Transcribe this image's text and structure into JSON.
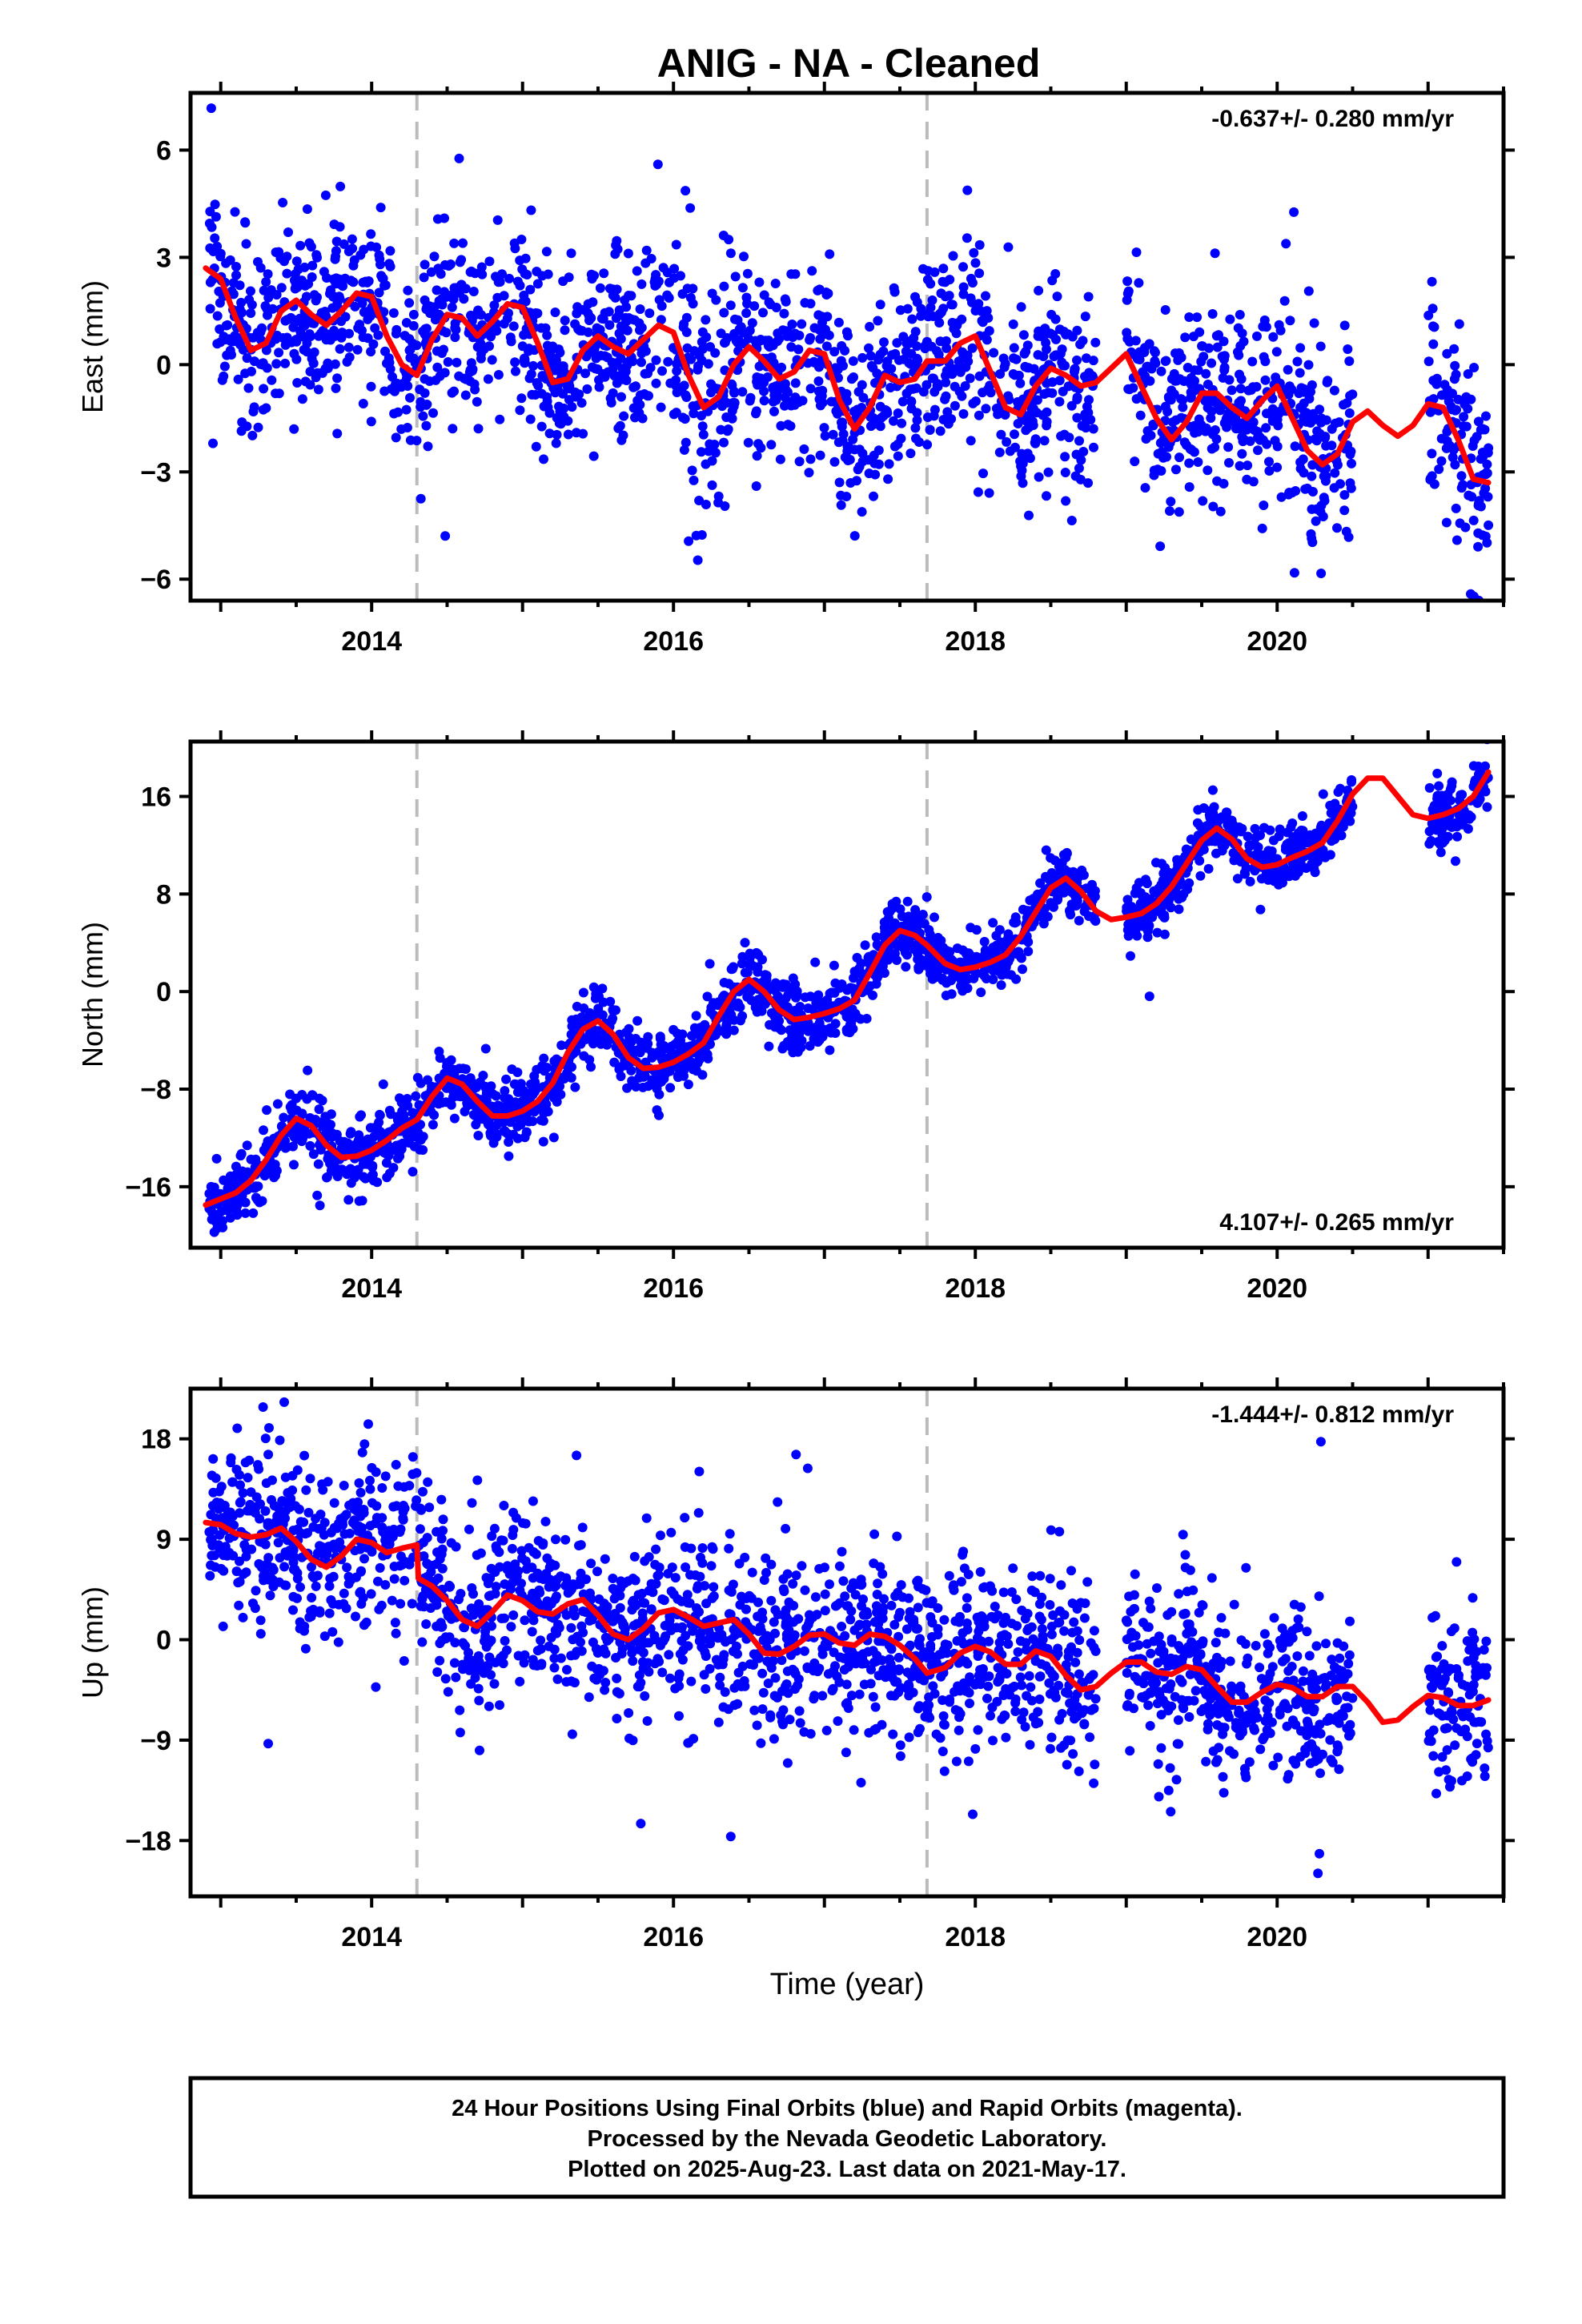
{
  "title": "ANIG  - NA - Cleaned",
  "footer": {
    "lines": [
      "24 Hour Positions Using Final Orbits (blue) and Rapid Orbits (magenta).",
      "Processed by the Nevada Geodetic Laboratory.",
      "Plotted on 2025-Aug-23. Last data on 2021-May-17."
    ]
  },
  "colors": {
    "points": "#0000ff",
    "model": "#ff0000",
    "event_line": "#bbbbbb",
    "frame": "#000000"
  },
  "chart_data": [
    {
      "type": "scatter",
      "ylabel": "East (mm)",
      "xlabel": "",
      "rate_label": "-0.637+/- 0.280 mm/yr",
      "rate_position": "top-right",
      "xlim": [
        2012.8,
        2021.5
      ],
      "ylim": [
        -6.6,
        7.6
      ],
      "yticks": [
        6,
        3,
        0,
        -3,
        -6
      ],
      "ytick_labels": [
        "6",
        "3",
        "0",
        "−3",
        "−6"
      ],
      "xticks": [
        2014,
        2016,
        2018,
        2020
      ],
      "xtick_labels": [
        "2014",
        "2016",
        "2018",
        "2020"
      ],
      "event_lines_x": [
        2014.3,
        2017.68
      ],
      "model": {
        "x": [
          2012.9,
          2013.0,
          2013.1,
          2013.2,
          2013.3,
          2013.4,
          2013.5,
          2013.6,
          2013.7,
          2013.8,
          2013.9,
          2014.0,
          2014.1,
          2014.2,
          2014.3,
          2014.4,
          2014.5,
          2014.6,
          2014.7,
          2014.8,
          2014.9,
          2015.0,
          2015.1,
          2015.2,
          2015.3,
          2015.4,
          2015.5,
          2015.6,
          2015.7,
          2015.8,
          2015.9,
          2016.0,
          2016.1,
          2016.2,
          2016.3,
          2016.4,
          2016.5,
          2016.6,
          2016.7,
          2016.8,
          2016.9,
          2017.0,
          2017.1,
          2017.2,
          2017.3,
          2017.4,
          2017.5,
          2017.6,
          2017.68,
          2017.8,
          2017.9,
          2018.0,
          2018.1,
          2018.2,
          2018.3,
          2018.4,
          2018.5,
          2018.6,
          2018.7,
          2018.8,
          2018.9,
          2019.0,
          2019.1,
          2019.2,
          2019.3,
          2019.4,
          2019.5,
          2019.6,
          2019.7,
          2019.8,
          2019.9,
          2020.0,
          2020.1,
          2020.2,
          2020.3,
          2020.4,
          2020.5,
          2020.6,
          2020.7,
          2020.8,
          2020.9,
          2021.0,
          2021.1,
          2021.2,
          2021.3,
          2021.4
        ],
        "y": [
          2.7,
          2.4,
          1.3,
          0.4,
          0.6,
          1.5,
          1.8,
          1.4,
          1.1,
          1.5,
          2.0,
          1.9,
          0.8,
          0.0,
          -0.3,
          0.7,
          1.4,
          1.3,
          0.8,
          1.2,
          1.7,
          1.6,
          0.6,
          -0.5,
          -0.4,
          0.4,
          0.8,
          0.5,
          0.3,
          0.7,
          1.1,
          0.9,
          -0.3,
          -1.2,
          -0.9,
          0.0,
          0.5,
          0.1,
          -0.4,
          -0.2,
          0.4,
          0.3,
          -1.0,
          -1.8,
          -1.2,
          -0.3,
          -0.5,
          -0.4,
          0.1,
          0.1,
          0.6,
          0.8,
          -0.2,
          -1.2,
          -1.4,
          -0.6,
          -0.1,
          -0.3,
          -0.6,
          -0.5,
          -0.1,
          0.3,
          -0.6,
          -1.5,
          -2.1,
          -1.6,
          -0.8,
          -0.8,
          -1.2,
          -1.5,
          -1.0,
          -0.6,
          -1.5,
          -2.4,
          -2.8,
          -2.5,
          -1.6,
          -1.3,
          -1.7,
          -2.0,
          -1.7,
          -1.1,
          -1.2,
          -2.1,
          -3.2,
          -3.3
        ]
      },
      "points": {
        "segments": [
          [
            2012.92,
            2013.22
          ],
          [
            2013.22,
            2014.3
          ],
          [
            2014.3,
            2015.6
          ],
          [
            2015.6,
            2016.1
          ],
          [
            2016.1,
            2016.4
          ],
          [
            2016.4,
            2017.68
          ],
          [
            2017.68,
            2018.8
          ],
          [
            2019.0,
            2019.9
          ],
          [
            2019.9,
            2020.2
          ],
          [
            2020.2,
            2020.5
          ],
          [
            2021.0,
            2021.4
          ]
        ],
        "spread": [
          1.5,
          1.2,
          1.3,
          1.4,
          1.8,
          1.3,
          1.3,
          1.3,
          1.5,
          1.5,
          1.4
        ],
        "count": 2200,
        "seed": 11
      }
    },
    {
      "type": "scatter",
      "ylabel": "North (mm)",
      "xlabel": "",
      "rate_label": "4.107+/- 0.265 mm/yr",
      "rate_position": "bottom-right",
      "xlim": [
        2012.8,
        2021.5
      ],
      "ylim": [
        -21,
        20.5
      ],
      "yticks": [
        16,
        8,
        0,
        -8,
        -16
      ],
      "ytick_labels": [
        "16",
        "8",
        "0",
        "−8",
        "−16"
      ],
      "xticks": [
        2014,
        2016,
        2018,
        2020
      ],
      "xtick_labels": [
        "2014",
        "2016",
        "2018",
        "2020"
      ],
      "event_lines_x": [
        2014.3,
        2017.68
      ],
      "model": {
        "x": [
          2012.9,
          2013.0,
          2013.1,
          2013.2,
          2013.3,
          2013.4,
          2013.5,
          2013.6,
          2013.7,
          2013.8,
          2013.9,
          2014.0,
          2014.1,
          2014.2,
          2014.3,
          2014.4,
          2014.5,
          2014.6,
          2014.7,
          2014.8,
          2014.9,
          2015.0,
          2015.1,
          2015.2,
          2015.3,
          2015.4,
          2015.5,
          2015.6,
          2015.7,
          2015.8,
          2015.9,
          2016.0,
          2016.1,
          2016.2,
          2016.3,
          2016.4,
          2016.5,
          2016.6,
          2016.7,
          2016.8,
          2016.9,
          2017.0,
          2017.1,
          2017.2,
          2017.3,
          2017.4,
          2017.5,
          2017.6,
          2017.68,
          2017.8,
          2017.9,
          2018.0,
          2018.1,
          2018.2,
          2018.3,
          2018.4,
          2018.5,
          2018.6,
          2018.7,
          2018.8,
          2018.9,
          2019.0,
          2019.1,
          2019.2,
          2019.3,
          2019.4,
          2019.5,
          2019.6,
          2019.7,
          2019.8,
          2019.9,
          2020.0,
          2020.1,
          2020.2,
          2020.3,
          2020.4,
          2020.5,
          2020.6,
          2020.7,
          2020.8,
          2020.9,
          2021.0,
          2021.1,
          2021.2,
          2021.3,
          2021.4
        ],
        "y": [
          -17.5,
          -17.0,
          -16.5,
          -15.5,
          -13.8,
          -11.8,
          -10.4,
          -11.0,
          -12.6,
          -13.6,
          -13.5,
          -13.0,
          -12.2,
          -11.2,
          -10.5,
          -8.6,
          -7.1,
          -7.6,
          -9.0,
          -10.2,
          -10.2,
          -9.8,
          -9.0,
          -7.5,
          -5.0,
          -3.1,
          -2.4,
          -3.5,
          -5.4,
          -6.3,
          -6.2,
          -5.8,
          -5.1,
          -4.2,
          -2.0,
          0.0,
          1.0,
          0.0,
          -1.5,
          -2.3,
          -2.1,
          -1.8,
          -1.4,
          -0.7,
          1.5,
          3.8,
          5.0,
          4.6,
          3.8,
          2.3,
          1.8,
          2.0,
          2.4,
          3.0,
          4.5,
          6.5,
          8.5,
          9.3,
          8.2,
          6.6,
          5.9,
          6.1,
          6.4,
          7.2,
          8.6,
          10.5,
          12.4,
          13.4,
          12.5,
          10.9,
          10.2,
          10.4,
          11.0,
          11.5,
          12.2,
          14.0,
          16.2,
          17.5,
          17.5,
          16.0,
          14.5,
          14.2,
          14.5,
          15.0,
          16.0,
          18.0
        ]
      },
      "points": {
        "segments": [
          [
            2012.92,
            2013.22
          ],
          [
            2013.22,
            2014.3
          ],
          [
            2014.3,
            2015.6
          ],
          [
            2015.6,
            2016.1
          ],
          [
            2016.1,
            2016.4
          ],
          [
            2016.4,
            2017.68
          ],
          [
            2017.68,
            2018.8
          ],
          [
            2019.0,
            2019.9
          ],
          [
            2019.9,
            2020.2
          ],
          [
            2020.2,
            2020.5
          ],
          [
            2021.0,
            2021.4
          ]
        ],
        "spread": [
          1.3,
          1.4,
          1.3,
          1.4,
          1.3,
          1.3,
          1.2,
          1.2,
          1.3,
          1.2,
          1.2
        ],
        "count": 2200,
        "seed": 23
      }
    },
    {
      "type": "scatter",
      "ylabel": "Up (mm)",
      "xlabel": "Time (year)",
      "rate_label": "-1.444+/- 0.812 mm/yr",
      "rate_position": "top-right",
      "xlim": [
        2012.8,
        2021.5
      ],
      "ylim": [
        -23,
        22.5
      ],
      "yticks": [
        18,
        9,
        0,
        -9,
        -18
      ],
      "ytick_labels": [
        "18",
        "9",
        "0",
        "−9",
        "−18"
      ],
      "xticks": [
        2014,
        2016,
        2018,
        2020
      ],
      "xtick_labels": [
        "2014",
        "2016",
        "2018",
        "2020"
      ],
      "event_lines_x": [
        2014.3,
        2017.68
      ],
      "model": {
        "x": [
          2012.9,
          2013.0,
          2013.1,
          2013.2,
          2013.3,
          2013.4,
          2013.5,
          2013.6,
          2013.7,
          2013.8,
          2013.9,
          2014.0,
          2014.1,
          2014.2,
          2014.3,
          2014.31,
          2014.4,
          2014.5,
          2014.6,
          2014.7,
          2014.8,
          2014.9,
          2015.0,
          2015.1,
          2015.2,
          2015.3,
          2015.4,
          2015.5,
          2015.6,
          2015.7,
          2015.8,
          2015.9,
          2016.0,
          2016.1,
          2016.2,
          2016.3,
          2016.4,
          2016.5,
          2016.6,
          2016.7,
          2016.8,
          2016.9,
          2017.0,
          2017.1,
          2017.2,
          2017.3,
          2017.4,
          2017.5,
          2017.6,
          2017.68,
          2017.8,
          2017.9,
          2018.0,
          2018.1,
          2018.2,
          2018.3,
          2018.4,
          2018.5,
          2018.6,
          2018.7,
          2018.8,
          2018.9,
          2019.0,
          2019.1,
          2019.2,
          2019.3,
          2019.4,
          2019.5,
          2019.6,
          2019.7,
          2019.8,
          2019.9,
          2020.0,
          2020.1,
          2020.2,
          2020.3,
          2020.4,
          2020.5,
          2020.6,
          2020.7,
          2020.8,
          2020.9,
          2021.0,
          2021.1,
          2021.2,
          2021.3,
          2021.4
        ],
        "y": [
          10.5,
          10.3,
          9.5,
          9.2,
          9.4,
          10.0,
          8.8,
          7.2,
          6.5,
          7.5,
          9.0,
          8.7,
          7.8,
          8.2,
          8.5,
          5.5,
          4.8,
          3.5,
          1.8,
          1.2,
          2.5,
          4.0,
          3.5,
          2.5,
          2.3,
          3.2,
          3.6,
          2.2,
          0.5,
          0.0,
          1.0,
          2.4,
          2.7,
          2.0,
          1.2,
          1.5,
          1.8,
          0.5,
          -1.2,
          -1.3,
          -0.6,
          0.4,
          0.5,
          -0.3,
          -0.5,
          0.5,
          0.3,
          -0.5,
          -1.7,
          -3.0,
          -2.5,
          -1.2,
          -0.6,
          -1.1,
          -2.2,
          -2.2,
          -1.0,
          -1.5,
          -3.2,
          -4.5,
          -4.2,
          -3.0,
          -2.0,
          -2.0,
          -2.9,
          -3.1,
          -2.4,
          -2.7,
          -4.2,
          -5.6,
          -5.6,
          -4.7,
          -4.0,
          -4.3,
          -5.1,
          -5.1,
          -4.2,
          -4.2,
          -5.6,
          -7.4,
          -7.2,
          -6.0,
          -5.0,
          -5.2,
          -5.9,
          -5.9,
          -5.4
        ]
      },
      "points": {
        "segments": [
          [
            2012.92,
            2013.22
          ],
          [
            2013.22,
            2014.3
          ],
          [
            2014.3,
            2015.6
          ],
          [
            2015.6,
            2016.1
          ],
          [
            2016.1,
            2016.4
          ],
          [
            2016.4,
            2017.68
          ],
          [
            2017.68,
            2018.8
          ],
          [
            2019.0,
            2019.9
          ],
          [
            2019.9,
            2020.2
          ],
          [
            2020.2,
            2020.5
          ],
          [
            2021.0,
            2021.4
          ]
        ],
        "spread": [
          3.6,
          3.8,
          4.0,
          4.0,
          4.2,
          4.0,
          4.2,
          3.8,
          3.8,
          3.8,
          3.6
        ],
        "count": 2200,
        "seed": 37
      }
    }
  ]
}
